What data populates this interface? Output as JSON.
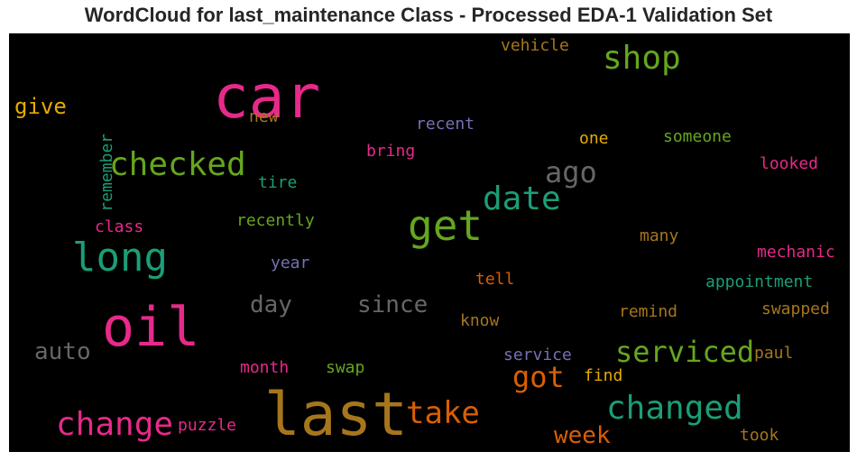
{
  "chart_data": {
    "type": "wordcloud",
    "title": "WordCloud for last_maintenance Class - Processed EDA-1 Validation Set",
    "background": "#000000",
    "colors": {
      "pink": "#e7298a",
      "brown": "#a6761d",
      "green": "#66a61e",
      "teal": "#1b9e77",
      "orange": "#d95f02",
      "gold": "#e6ab02",
      "purple": "#7570b3",
      "gray": "#666666"
    },
    "words": [
      {
        "text": "car",
        "weight": 1.0,
        "color": "pink"
      },
      {
        "text": "last",
        "weight": 1.0,
        "color": "brown"
      },
      {
        "text": "oil",
        "weight": 0.92,
        "color": "pink"
      },
      {
        "text": "get",
        "weight": 0.7,
        "color": "green"
      },
      {
        "text": "long",
        "weight": 0.65,
        "color": "teal"
      },
      {
        "text": "shop",
        "weight": 0.55,
        "color": "green"
      },
      {
        "text": "checked",
        "weight": 0.55,
        "color": "green"
      },
      {
        "text": "date",
        "weight": 0.55,
        "color": "teal"
      },
      {
        "text": "change",
        "weight": 0.55,
        "color": "pink"
      },
      {
        "text": "changed",
        "weight": 0.55,
        "color": "teal"
      },
      {
        "text": "take",
        "weight": 0.5,
        "color": "orange"
      },
      {
        "text": "ago",
        "weight": 0.5,
        "color": "gray"
      },
      {
        "text": "serviced",
        "weight": 0.5,
        "color": "green"
      },
      {
        "text": "got",
        "weight": 0.5,
        "color": "orange"
      },
      {
        "text": "since",
        "weight": 0.4,
        "color": "gray"
      },
      {
        "text": "day",
        "weight": 0.4,
        "color": "gray"
      },
      {
        "text": "auto",
        "weight": 0.4,
        "color": "gray"
      },
      {
        "text": "week",
        "weight": 0.4,
        "color": "orange"
      },
      {
        "text": "give",
        "weight": 0.35,
        "color": "gold"
      },
      {
        "text": "remember",
        "weight": 0.28,
        "color": "teal"
      },
      {
        "text": "vehicle",
        "weight": 0.28,
        "color": "brown"
      },
      {
        "text": "new",
        "weight": 0.28,
        "color": "brown"
      },
      {
        "text": "recent",
        "weight": 0.28,
        "color": "purple"
      },
      {
        "text": "one",
        "weight": 0.28,
        "color": "gold"
      },
      {
        "text": "someone",
        "weight": 0.28,
        "color": "green"
      },
      {
        "text": "bring",
        "weight": 0.28,
        "color": "pink"
      },
      {
        "text": "looked",
        "weight": 0.28,
        "color": "pink"
      },
      {
        "text": "tire",
        "weight": 0.28,
        "color": "teal"
      },
      {
        "text": "class",
        "weight": 0.28,
        "color": "pink"
      },
      {
        "text": "recently",
        "weight": 0.28,
        "color": "green"
      },
      {
        "text": "many",
        "weight": 0.28,
        "color": "brown"
      },
      {
        "text": "mechanic",
        "weight": 0.28,
        "color": "pink"
      },
      {
        "text": "year",
        "weight": 0.28,
        "color": "purple"
      },
      {
        "text": "tell",
        "weight": 0.28,
        "color": "orange"
      },
      {
        "text": "appointment",
        "weight": 0.28,
        "color": "teal"
      },
      {
        "text": "remind",
        "weight": 0.28,
        "color": "brown"
      },
      {
        "text": "swapped",
        "weight": 0.28,
        "color": "brown"
      },
      {
        "text": "know",
        "weight": 0.28,
        "color": "brown"
      },
      {
        "text": "service",
        "weight": 0.28,
        "color": "purple"
      },
      {
        "text": "paul",
        "weight": 0.28,
        "color": "brown"
      },
      {
        "text": "month",
        "weight": 0.28,
        "color": "pink"
      },
      {
        "text": "swap",
        "weight": 0.28,
        "color": "green"
      },
      {
        "text": "find",
        "weight": 0.28,
        "color": "gold"
      },
      {
        "text": "puzzle",
        "weight": 0.28,
        "color": "pink"
      },
      {
        "text": "took",
        "weight": 0.28,
        "color": "brown"
      }
    ]
  }
}
